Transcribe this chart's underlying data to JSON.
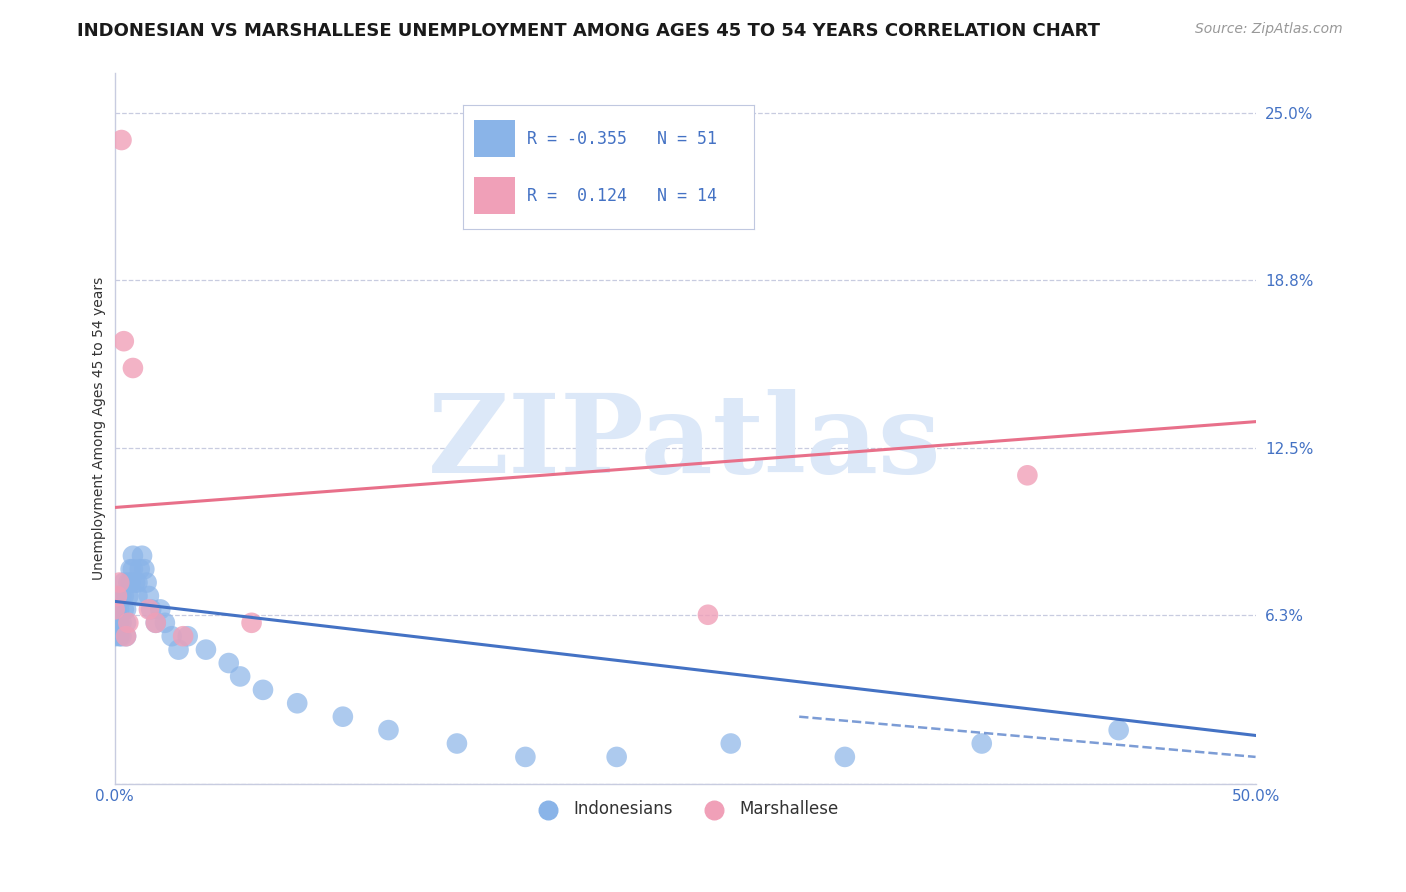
{
  "title": "INDONESIAN VS MARSHALLESE UNEMPLOYMENT AMONG AGES 45 TO 54 YEARS CORRELATION CHART",
  "source": "Source: ZipAtlas.com",
  "ylabel": "Unemployment Among Ages 45 to 54 years",
  "xlim": [
    0.0,
    0.5
  ],
  "ylim": [
    0.0,
    0.265
  ],
  "yticks_right": [
    0.25,
    0.188,
    0.125,
    0.063,
    0.0
  ],
  "ytick_labels_right": [
    "25.0%",
    "18.8%",
    "12.5%",
    "6.3%",
    ""
  ],
  "xtick_positions": [
    0.0,
    0.125,
    0.25,
    0.375,
    0.5
  ],
  "xtick_labels": [
    "0.0%",
    "",
    "",
    "",
    "50.0%"
  ],
  "indonesian_color": "#8ab4e8",
  "marshallese_color": "#f0a0b8",
  "indonesian_line_color": "#4472c4",
  "marshallese_line_color": "#e8708a",
  "grid_color": "#c8cce0",
  "background_color": "#ffffff",
  "watermark_color": "#dce8f8",
  "label_color": "#4472c4",
  "legend_r_indonesian": "-0.355",
  "legend_n_indonesian": "51",
  "legend_r_marshallese": "0.124",
  "legend_n_marshallese": "14",
  "title_fontsize": 13,
  "axis_label_fontsize": 10,
  "tick_fontsize": 11,
  "source_fontsize": 10,
  "indo_x": [
    0.0,
    0.001,
    0.001,
    0.001,
    0.002,
    0.002,
    0.002,
    0.003,
    0.003,
    0.003,
    0.004,
    0.004,
    0.004,
    0.005,
    0.005,
    0.005,
    0.006,
    0.006,
    0.007,
    0.007,
    0.008,
    0.008,
    0.009,
    0.01,
    0.01,
    0.011,
    0.012,
    0.013,
    0.014,
    0.015,
    0.016,
    0.018,
    0.02,
    0.022,
    0.025,
    0.028,
    0.032,
    0.04,
    0.05,
    0.055,
    0.065,
    0.08,
    0.1,
    0.12,
    0.15,
    0.18,
    0.22,
    0.27,
    0.32,
    0.38,
    0.44
  ],
  "indo_y": [
    0.055,
    0.06,
    0.07,
    0.065,
    0.06,
    0.055,
    0.065,
    0.07,
    0.06,
    0.055,
    0.065,
    0.075,
    0.07,
    0.06,
    0.055,
    0.065,
    0.075,
    0.07,
    0.08,
    0.075,
    0.085,
    0.08,
    0.075,
    0.07,
    0.075,
    0.08,
    0.085,
    0.08,
    0.075,
    0.07,
    0.065,
    0.06,
    0.065,
    0.06,
    0.055,
    0.05,
    0.055,
    0.05,
    0.045,
    0.04,
    0.035,
    0.03,
    0.025,
    0.02,
    0.015,
    0.01,
    0.01,
    0.015,
    0.01,
    0.015,
    0.02
  ],
  "marsh_x": [
    0.0,
    0.001,
    0.002,
    0.003,
    0.004,
    0.005,
    0.006,
    0.008,
    0.015,
    0.018,
    0.03,
    0.06,
    0.26,
    0.4
  ],
  "marsh_y": [
    0.065,
    0.07,
    0.075,
    0.24,
    0.165,
    0.055,
    0.06,
    0.155,
    0.065,
    0.06,
    0.055,
    0.06,
    0.063,
    0.115
  ],
  "indo_line_x": [
    0.0,
    0.5
  ],
  "indo_line_y": [
    0.068,
    0.018
  ],
  "marsh_line_x": [
    0.0,
    0.5
  ],
  "marsh_line_y": [
    0.103,
    0.135
  ]
}
